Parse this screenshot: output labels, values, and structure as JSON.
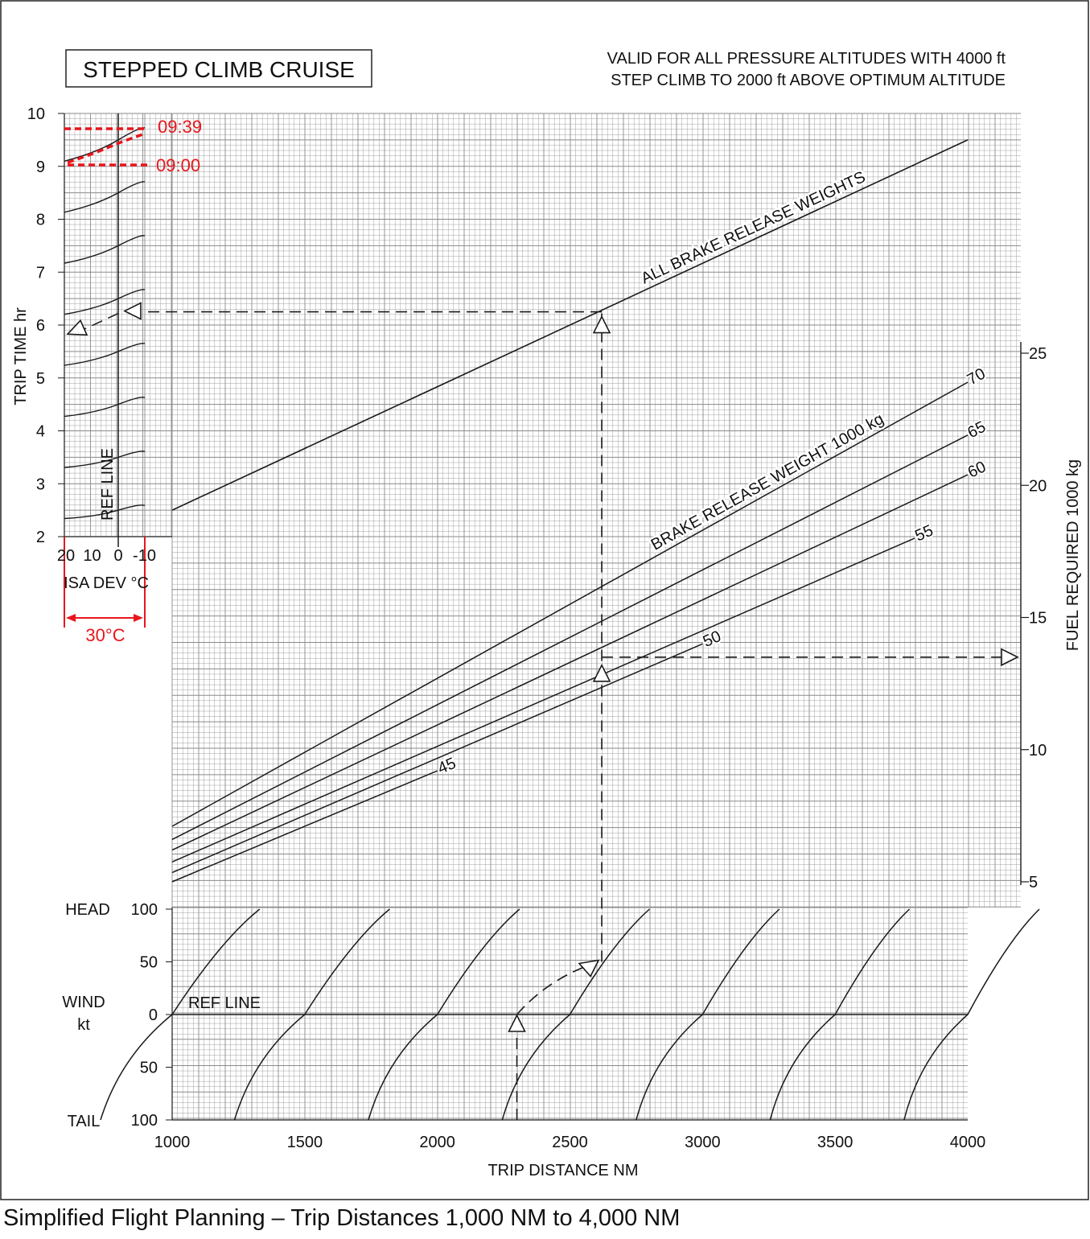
{
  "caption": "Simplified Flight Planning – Trip Distances 1,000 NM to 4,000 NM",
  "chart_data": {
    "type": "line",
    "title": "STEPPED CLIMB CRUISE",
    "note_lines": [
      "VALID FOR ALL PRESSURE ALTITUDES WITH 4000 ft",
      "STEP CLIMB TO 2000 ft ABOVE OPTIMUM ALTITUDE"
    ],
    "x_axis": {
      "label": "TRIP DISTANCE  NM",
      "range": [
        1000,
        4000
      ],
      "ticks": [
        1000,
        1500,
        2000,
        2500,
        3000,
        3500,
        4000
      ],
      "tick_labels": [
        "1000",
        "1500",
        "2000",
        "2500",
        "3000",
        "3500",
        "4000"
      ]
    },
    "time_axis": {
      "label": "TRIP TIME  hr",
      "range": [
        2,
        10
      ],
      "ticks": [
        2,
        3,
        4,
        5,
        6,
        7,
        8,
        9,
        10
      ],
      "tick_labels": [
        "2",
        "3",
        "4",
        "5",
        "6",
        "7",
        "8",
        "9",
        "10"
      ]
    },
    "fuel_axis": {
      "label": "FUEL REQUIRED  1000 kg",
      "range": [
        5,
        25
      ],
      "ticks": [
        5,
        10,
        15,
        20,
        25
      ],
      "tick_labels": [
        "5",
        "10",
        "15",
        "20",
        "25"
      ]
    },
    "isa_axis": {
      "label": "ISA DEV °C",
      "range": [
        20,
        -10
      ],
      "ticks": [
        20,
        10,
        0,
        -10
      ],
      "tick_labels": [
        "20",
        "10",
        "0",
        "-10"
      ],
      "ref_line_label": "REF LINE",
      "ref_value": 0
    },
    "wind_axis": {
      "label_top": "HEAD",
      "label_mid_1": "WIND",
      "label_mid_2": "kt",
      "label_bottom": "TAIL",
      "ticks": [
        100,
        50,
        0,
        -50,
        -100
      ],
      "tick_labels": [
        "100",
        "50",
        "0",
        "50",
        "100"
      ],
      "ref_line_label": "REF LINE"
    },
    "trip_time_line": {
      "name": "ALL BRAKE RELEASE WEIGHTS",
      "points": [
        [
          1000,
          2.5
        ],
        [
          4000,
          9.5
        ]
      ]
    },
    "fuel_series_label": "BRAKE RELEASE WEIGHT  1000 kg",
    "fuel_series": [
      {
        "name": "45",
        "points": [
          [
            1000,
            5.0
          ],
          [
            2000,
            9.2
          ]
        ]
      },
      {
        "name": "50",
        "points": [
          [
            1000,
            5.35
          ],
          [
            3000,
            14.0
          ]
        ]
      },
      {
        "name": "55",
        "points": [
          [
            1000,
            5.75
          ],
          [
            3800,
            18.0
          ]
        ]
      },
      {
        "name": "60",
        "points": [
          [
            1000,
            6.2
          ],
          [
            4000,
            20.4
          ]
        ]
      },
      {
        "name": "65",
        "points": [
          [
            1000,
            6.6
          ],
          [
            4000,
            21.9
          ]
        ]
      },
      {
        "name": "70",
        "points": [
          [
            1000,
            7.1
          ],
          [
            4000,
            23.9
          ]
        ]
      }
    ],
    "worked_example": {
      "wind_entry_distance": 2300,
      "corrected_distance": 2620,
      "trip_time_hr": 6.25,
      "isa_corrected_time_hr": 5.95,
      "fuel_required": 13.5
    },
    "annotations": {
      "time_high": "09:39",
      "time_low": "09:00",
      "isa_span": "30°C"
    },
    "colors": {
      "grid": "#8a8a8a",
      "line": "#1a1a1a",
      "annotation": "#e8161d"
    },
    "grid": true
  }
}
